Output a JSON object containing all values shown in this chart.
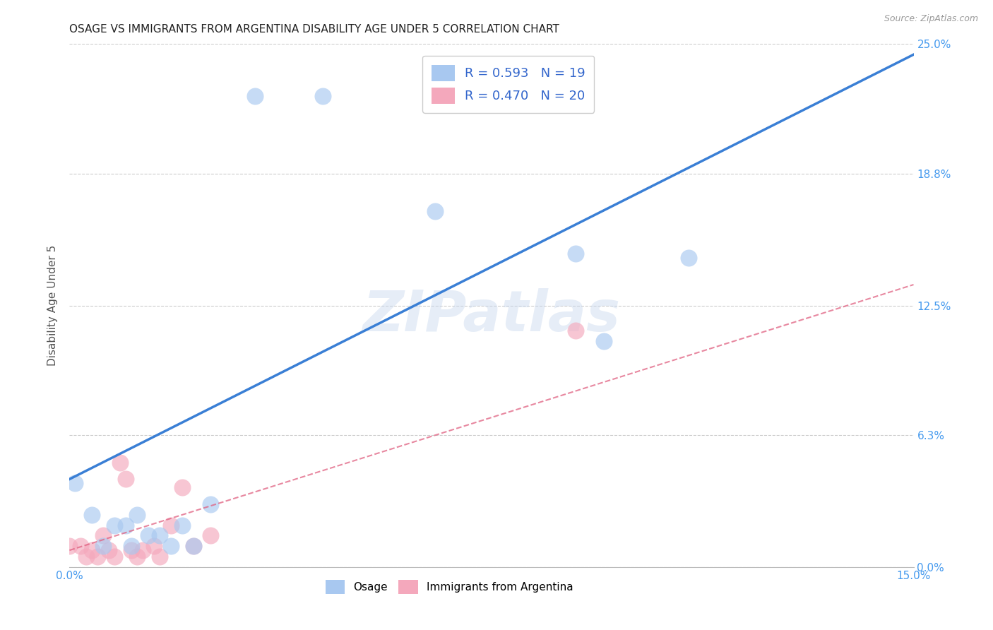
{
  "title": "OSAGE VS IMMIGRANTS FROM ARGENTINA DISABILITY AGE UNDER 5 CORRELATION CHART",
  "source": "Source: ZipAtlas.com",
  "ylabel": "Disability Age Under 5",
  "xlim": [
    0.0,
    0.15
  ],
  "ylim": [
    0.0,
    0.25
  ],
  "ytick_labels": [
    "0.0%",
    "6.3%",
    "12.5%",
    "18.8%",
    "25.0%"
  ],
  "ytick_values": [
    0.0,
    0.063,
    0.125,
    0.188,
    0.25
  ],
  "osage_color": "#A8C8F0",
  "argentina_color": "#F4A8BC",
  "osage_line_color": "#3A7FD5",
  "argentina_line_color": "#E06080",
  "r_osage": 0.593,
  "n_osage": 19,
  "r_argentina": 0.47,
  "n_argentina": 20,
  "watermark": "ZIPatlas",
  "osage_x": [
    0.001,
    0.004,
    0.006,
    0.008,
    0.01,
    0.011,
    0.012,
    0.014,
    0.016,
    0.018,
    0.02,
    0.022,
    0.025,
    0.033,
    0.045,
    0.065,
    0.09,
    0.095,
    0.11
  ],
  "osage_y": [
    0.04,
    0.025,
    0.01,
    0.02,
    0.02,
    0.01,
    0.025,
    0.015,
    0.015,
    0.01,
    0.02,
    0.01,
    0.03,
    0.225,
    0.225,
    0.17,
    0.15,
    0.108,
    0.148
  ],
  "argentina_x": [
    0.0,
    0.002,
    0.003,
    0.004,
    0.005,
    0.006,
    0.007,
    0.008,
    0.009,
    0.01,
    0.011,
    0.012,
    0.013,
    0.015,
    0.016,
    0.018,
    0.02,
    0.022,
    0.025,
    0.09
  ],
  "argentina_y": [
    0.01,
    0.01,
    0.005,
    0.008,
    0.005,
    0.015,
    0.008,
    0.005,
    0.05,
    0.042,
    0.008,
    0.005,
    0.008,
    0.01,
    0.005,
    0.02,
    0.038,
    0.01,
    0.015,
    0.113
  ],
  "osage_line_x0": 0.0,
  "osage_line_y0": 0.042,
  "osage_line_x1": 0.15,
  "osage_line_y1": 0.245,
  "arg_line_x0": 0.0,
  "arg_line_y0": 0.008,
  "arg_line_x1": 0.15,
  "arg_line_y1": 0.135,
  "background_color": "#FFFFFF",
  "grid_color": "#CCCCCC",
  "title_color": "#222222",
  "axis_color": "#4499EE",
  "legend_r_color": "#3366CC"
}
